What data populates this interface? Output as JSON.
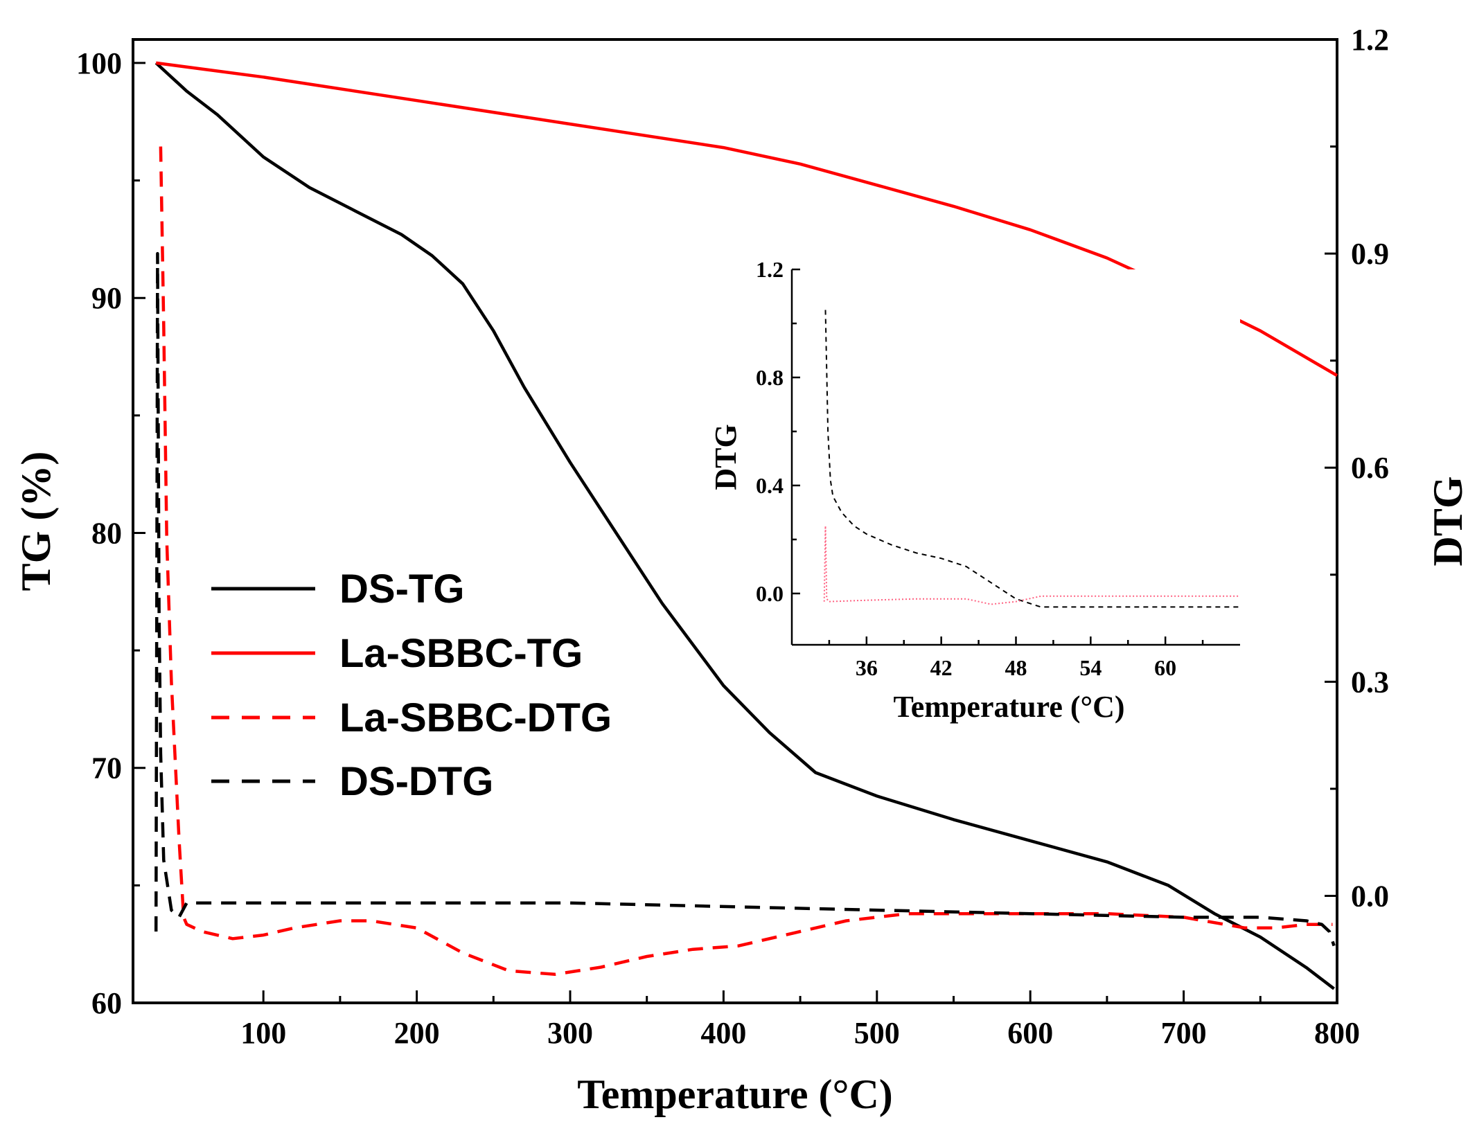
{
  "chart_data": [
    {
      "type": "line",
      "xlabel": "Temperature (°C)",
      "ylabel": "TG (%)",
      "y2label": "DTG",
      "xlim": [
        15,
        800
      ],
      "ylim": [
        60,
        101
      ],
      "y2lim": [
        -0.15,
        1.2
      ],
      "xticks": [
        "100",
        "200",
        "300",
        "400",
        "500",
        "600",
        "700",
        "800"
      ],
      "yticks": [
        "60",
        "70",
        "80",
        "90",
        "100"
      ],
      "y2ticks": [
        "0.0",
        "0.3",
        "0.6",
        "0.9",
        "1.2"
      ],
      "legend": [
        "DS-TG",
        "La-SBBC-TG",
        "La-SBBC-DTG",
        "DS-DTG"
      ],
      "legend_position": "left-center",
      "series": [
        {
          "name": "DS-TG",
          "axis": "left",
          "style": "solid",
          "color": "#000000",
          "x": [
            30,
            50,
            70,
            100,
            130,
            160,
            190,
            210,
            230,
            250,
            270,
            300,
            330,
            360,
            400,
            430,
            460,
            500,
            550,
            600,
            650,
            690,
            720,
            750,
            780,
            798
          ],
          "y": [
            100,
            98.8,
            97.8,
            96.0,
            94.7,
            93.7,
            92.7,
            91.8,
            90.6,
            88.6,
            86.2,
            83.0,
            80.0,
            77.0,
            73.5,
            71.5,
            69.8,
            68.8,
            67.8,
            66.9,
            66.0,
            65.0,
            63.8,
            62.8,
            61.5,
            60.6
          ]
        },
        {
          "name": "La-SBBC-TG",
          "axis": "left",
          "style": "solid",
          "color": "#ff0000",
          "x": [
            30,
            100,
            200,
            300,
            400,
            450,
            500,
            550,
            600,
            650,
            700,
            750,
            800
          ],
          "y": [
            100,
            99.4,
            98.4,
            97.4,
            96.4,
            95.7,
            94.8,
            93.9,
            92.9,
            91.7,
            90.2,
            88.6,
            86.7
          ]
        },
        {
          "name": "La-SBBC-DTG",
          "axis": "right",
          "style": "dashed",
          "color": "#ff0000",
          "x": [
            33,
            35,
            37,
            40,
            45,
            48,
            50,
            60,
            80,
            100,
            120,
            150,
            170,
            200,
            230,
            260,
            290,
            320,
            350,
            380,
            410,
            440,
            480,
            520,
            560,
            600,
            650,
            700,
            740,
            760,
            780,
            797
          ],
          "y": [
            1.05,
            0.8,
            0.5,
            0.3,
            0.08,
            -0.03,
            -0.04,
            -0.05,
            -0.06,
            -0.055,
            -0.045,
            -0.035,
            -0.035,
            -0.045,
            -0.08,
            -0.105,
            -0.11,
            -0.1,
            -0.085,
            -0.075,
            -0.07,
            -0.055,
            -0.035,
            -0.025,
            -0.025,
            -0.025,
            -0.025,
            -0.03,
            -0.045,
            -0.045,
            -0.04,
            -0.04
          ]
        },
        {
          "name": "DS-DTG",
          "axis": "right",
          "style": "dashed",
          "color": "#000000",
          "x": [
            30,
            31,
            32,
            33,
            35,
            40,
            45,
            50,
            100,
            200,
            300,
            400,
            500,
            600,
            700,
            750,
            780,
            790,
            795,
            798
          ],
          "y": [
            -0.05,
            0.9,
            0.4,
            0.2,
            0.05,
            -0.02,
            -0.03,
            -0.01,
            -0.01,
            -0.01,
            -0.01,
            -0.015,
            -0.02,
            -0.025,
            -0.03,
            -0.03,
            -0.035,
            -0.04,
            -0.05,
            -0.07
          ]
        }
      ]
    },
    {
      "type": "line",
      "role": "inset",
      "xlabel": "Temperature (°C)",
      "ylabel": "DTG",
      "xlim": [
        30,
        66
      ],
      "ylim": [
        -0.19,
        1.2
      ],
      "xticks": [
        "36",
        "42",
        "48",
        "54",
        "60"
      ],
      "yticks": [
        "0.0",
        "0.4",
        "0.8",
        "1.2"
      ],
      "series": [
        {
          "name": "DS-DTG",
          "style": "dashed",
          "color": "#000000",
          "x": [
            32.7,
            32.9,
            33.1,
            33.3,
            34,
            35,
            36,
            38,
            40,
            42,
            44,
            46,
            48,
            50,
            55,
            60,
            66
          ],
          "y": [
            1.05,
            0.6,
            0.42,
            0.36,
            0.3,
            0.25,
            0.22,
            0.18,
            0.15,
            0.13,
            0.1,
            0.04,
            -0.02,
            -0.05,
            -0.05,
            -0.05,
            -0.05
          ]
        },
        {
          "name": "La-SBBC-DTG",
          "style": "dotted",
          "color": "#ff6080",
          "x": [
            32.6,
            32.7,
            32.8,
            33.0,
            36,
            40,
            44,
            46,
            48,
            50,
            55,
            60,
            66
          ],
          "y": [
            -0.03,
            0.25,
            -0.02,
            -0.03,
            -0.025,
            -0.02,
            -0.02,
            -0.04,
            -0.03,
            -0.01,
            -0.01,
            -0.01,
            -0.01
          ]
        }
      ]
    }
  ]
}
